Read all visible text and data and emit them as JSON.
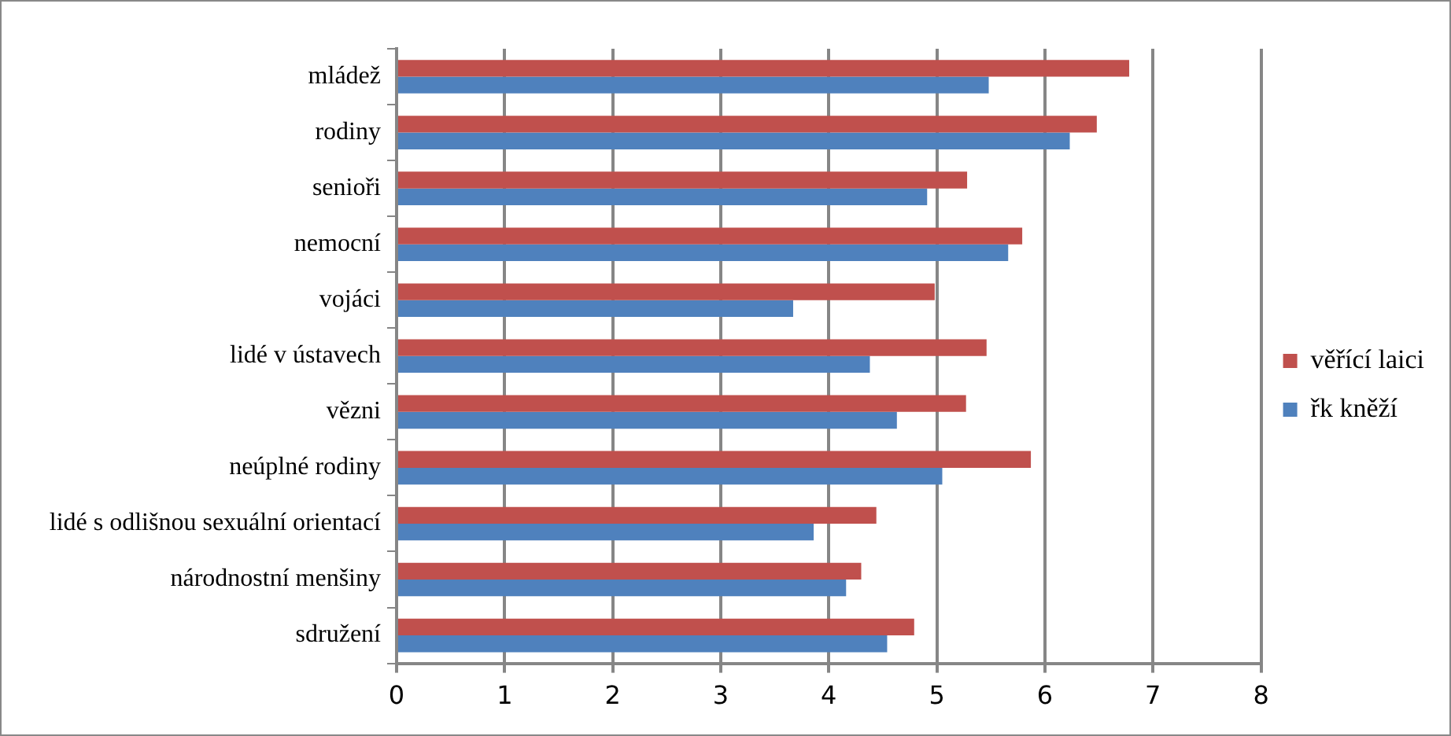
{
  "chart_data": {
    "type": "bar",
    "orientation": "horizontal",
    "categories": [
      "mládež",
      "rodiny",
      "senioři",
      "nemocní",
      "vojáci",
      "lidé v ústavech",
      "vězni",
      "neúplné rodiny",
      "lidé s odlišnou sexuální orientací",
      "národnostní menšiny",
      "sdružení"
    ],
    "series": [
      {
        "name": "věřící laici",
        "color": "#c0504d",
        "values": [
          6.78,
          6.48,
          5.28,
          5.79,
          4.98,
          5.46,
          5.27,
          5.87,
          4.44,
          4.3,
          4.79
        ]
      },
      {
        "name": "řk kněží",
        "color": "#4f81bd",
        "values": [
          5.48,
          6.23,
          4.91,
          5.66,
          3.67,
          4.38,
          4.63,
          5.05,
          3.86,
          4.16,
          4.54
        ]
      }
    ],
    "xlim": [
      0,
      8
    ],
    "xticks": [
      0,
      1,
      2,
      3,
      4,
      5,
      6,
      7,
      8
    ],
    "grid": "x",
    "legend": "right"
  }
}
